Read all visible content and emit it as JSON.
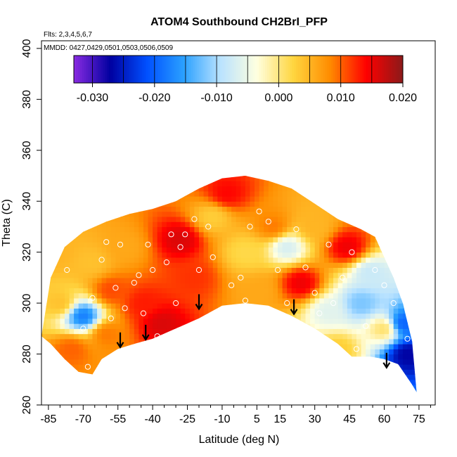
{
  "chart_data": {
    "type": "heatmap",
    "title": "ATOM4 Southbound CH2BrI_PFP",
    "annotations": {
      "flights": "Flts: 2,3,4,5,6,7",
      "dates": "MMDD: 0427,0429,0501,0503,0506,0509"
    },
    "xlabel": "Latitude (deg N)",
    "ylabel": "Theta (C)",
    "xlim": [
      -88,
      82
    ],
    "ylim": [
      260,
      403
    ],
    "x_ticks": [
      -85,
      -70,
      -55,
      -40,
      -25,
      -10,
      5,
      15,
      30,
      45,
      60,
      75
    ],
    "y_ticks": [
      260,
      280,
      300,
      320,
      340,
      360,
      380,
      400
    ],
    "colorbar": {
      "range": [
        -0.033,
        0.02
      ],
      "ticks": [
        -0.03,
        -0.02,
        -0.01,
        0.0,
        0.01,
        0.02
      ],
      "tick_labels": [
        "-0.030",
        "-0.020",
        "-0.010",
        "0.000",
        "0.010",
        "0.020"
      ],
      "colors": [
        "#8a2be2",
        "#0000a0",
        "#0050ff",
        "#2aa0ff",
        "#b8e2ff",
        "#ffffe0",
        "#ffd640",
        "#ff8c00",
        "#ff0000",
        "#8b1a1a"
      ]
    },
    "envelope_top": [
      [
        -88,
        287
      ],
      [
        -84,
        310
      ],
      [
        -78,
        322
      ],
      [
        -70,
        328
      ],
      [
        -60,
        332
      ],
      [
        -50,
        335
      ],
      [
        -40,
        337
      ],
      [
        -30,
        340
      ],
      [
        -20,
        345
      ],
      [
        -10,
        349
      ],
      [
        0,
        350
      ],
      [
        10,
        348
      ],
      [
        20,
        345
      ],
      [
        30,
        339
      ],
      [
        40,
        333
      ],
      [
        50,
        329
      ],
      [
        56,
        326
      ],
      [
        60,
        318
      ],
      [
        64,
        310
      ],
      [
        68,
        300
      ],
      [
        72,
        285
      ],
      [
        74,
        265
      ]
    ],
    "envelope_bottom": [
      [
        -88,
        287
      ],
      [
        -84,
        284
      ],
      [
        -78,
        278
      ],
      [
        -72,
        273
      ],
      [
        -66,
        272
      ],
      [
        -62,
        278
      ],
      [
        -55,
        282
      ],
      [
        -48,
        284
      ],
      [
        -40,
        286
      ],
      [
        -30,
        290
      ],
      [
        -20,
        294
      ],
      [
        -10,
        299
      ],
      [
        0,
        300
      ],
      [
        10,
        299
      ],
      [
        20,
        295
      ],
      [
        30,
        290
      ],
      [
        40,
        284
      ],
      [
        46,
        279
      ],
      [
        54,
        279
      ],
      [
        60,
        278
      ],
      [
        66,
        276
      ],
      [
        72,
        268
      ],
      [
        74,
        265
      ]
    ],
    "field_points": [
      {
        "lat": -80,
        "theta": 300,
        "value": 0.004
      },
      {
        "lat": -70,
        "theta": 295,
        "value": -0.018
      },
      {
        "lat": -66,
        "theta": 316,
        "value": 0.004
      },
      {
        "lat": -58,
        "theta": 305,
        "value": 0.011
      },
      {
        "lat": -60,
        "theta": 288,
        "value": 0.009
      },
      {
        "lat": -52,
        "theta": 322,
        "value": 0.006
      },
      {
        "lat": -44,
        "theta": 300,
        "value": 0.013
      },
      {
        "lat": -36,
        "theta": 292,
        "value": 0.016
      },
      {
        "lat": -28,
        "theta": 325,
        "value": 0.016
      },
      {
        "lat": -22,
        "theta": 310,
        "value": 0.012
      },
      {
        "lat": -14,
        "theta": 334,
        "value": 0.003
      },
      {
        "lat": -8,
        "theta": 343,
        "value": 0.014
      },
      {
        "lat": 0,
        "theta": 320,
        "value": 0.002
      },
      {
        "lat": 6,
        "theta": 305,
        "value": 0.006
      },
      {
        "lat": 12,
        "theta": 330,
        "value": 0.009
      },
      {
        "lat": 18,
        "theta": 322,
        "value": -0.007
      },
      {
        "lat": 24,
        "theta": 308,
        "value": 0.015
      },
      {
        "lat": 30,
        "theta": 330,
        "value": 0.005
      },
      {
        "lat": 36,
        "theta": 297,
        "value": -0.006
      },
      {
        "lat": 44,
        "theta": 322,
        "value": 0.015
      },
      {
        "lat": 50,
        "theta": 300,
        "value": -0.012
      },
      {
        "lat": 54,
        "theta": 312,
        "value": -0.008
      },
      {
        "lat": 60,
        "theta": 290,
        "value": 0.001
      },
      {
        "lat": 68,
        "theta": 292,
        "value": -0.02
      },
      {
        "lat": 70,
        "theta": 280,
        "value": -0.027
      },
      {
        "lat": -82,
        "theta": 320,
        "value": 0.005
      },
      {
        "lat": -75,
        "theta": 282,
        "value": 0.01
      },
      {
        "lat": 40,
        "theta": 282,
        "value": 0.003
      }
    ],
    "samples": [
      {
        "lat": -83,
        "theta": 320
      },
      {
        "lat": -77,
        "theta": 313
      },
      {
        "lat": -70,
        "theta": 290
      },
      {
        "lat": -68,
        "theta": 275
      },
      {
        "lat": -66,
        "theta": 302
      },
      {
        "lat": -62,
        "theta": 317
      },
      {
        "lat": -60,
        "theta": 324
      },
      {
        "lat": -58,
        "theta": 294
      },
      {
        "lat": -56,
        "theta": 306
      },
      {
        "lat": -54,
        "theta": 323
      },
      {
        "lat": -52,
        "theta": 298
      },
      {
        "lat": -48,
        "theta": 308
      },
      {
        "lat": -46,
        "theta": 311
      },
      {
        "lat": -44,
        "theta": 296
      },
      {
        "lat": -42,
        "theta": 323
      },
      {
        "lat": -40,
        "theta": 313
      },
      {
        "lat": -38,
        "theta": 287
      },
      {
        "lat": -34,
        "theta": 316
      },
      {
        "lat": -32,
        "theta": 327
      },
      {
        "lat": -30,
        "theta": 300
      },
      {
        "lat": -28,
        "theta": 322
      },
      {
        "lat": -26,
        "theta": 327
      },
      {
        "lat": -22,
        "theta": 333
      },
      {
        "lat": -20,
        "theta": 313
      },
      {
        "lat": -16,
        "theta": 330
      },
      {
        "lat": -14,
        "theta": 318
      },
      {
        "lat": -6,
        "theta": 307
      },
      {
        "lat": -2,
        "theta": 310
      },
      {
        "lat": 2,
        "theta": 330
      },
      {
        "lat": 6,
        "theta": 336
      },
      {
        "lat": 10,
        "theta": 332
      },
      {
        "lat": 14,
        "theta": 313
      },
      {
        "lat": 18,
        "theta": 300
      },
      {
        "lat": 22,
        "theta": 329
      },
      {
        "lat": 26,
        "theta": 314
      },
      {
        "lat": 30,
        "theta": 304
      },
      {
        "lat": 32,
        "theta": 296
      },
      {
        "lat": 36,
        "theta": 323
      },
      {
        "lat": 38,
        "theta": 300
      },
      {
        "lat": 42,
        "theta": 310
      },
      {
        "lat": 46,
        "theta": 320
      },
      {
        "lat": 48,
        "theta": 282
      },
      {
        "lat": 52,
        "theta": 291
      },
      {
        "lat": 56,
        "theta": 313
      },
      {
        "lat": 60,
        "theta": 307
      },
      {
        "lat": 64,
        "theta": 300
      },
      {
        "lat": 66,
        "theta": 327
      },
      {
        "lat": 70,
        "theta": 286
      },
      {
        "lat": 0,
        "theta": 301
      },
      {
        "lat": -10,
        "theta": 296
      }
    ],
    "arrows": [
      {
        "lat": -54,
        "theta": 286
      },
      {
        "lat": -43,
        "theta": 289
      },
      {
        "lat": -20,
        "theta": 301
      },
      {
        "lat": 21,
        "theta": 299
      },
      {
        "lat": 61,
        "theta": 278
      }
    ]
  }
}
